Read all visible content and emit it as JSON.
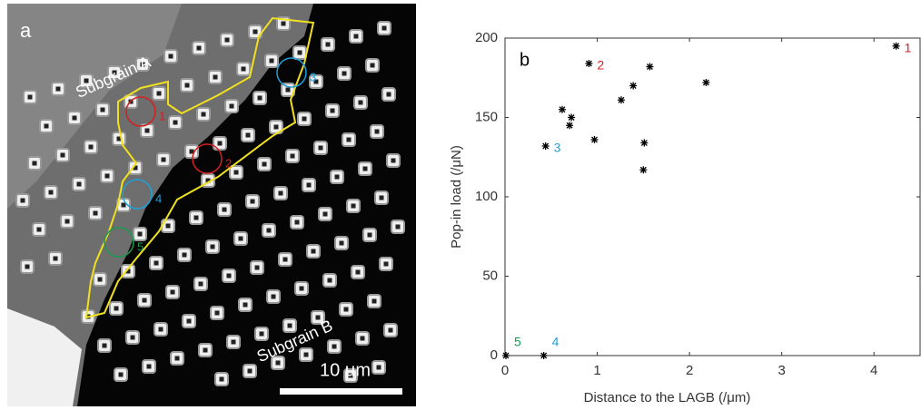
{
  "micrograph": {
    "panel_label": "a",
    "regions": [
      "Subgrain A",
      "Subgrain B"
    ],
    "scale_bar": "10 μm",
    "markers": [
      {
        "label": "1",
        "color": "#d42020"
      },
      {
        "label": "2",
        "color": "#d42020"
      },
      {
        "label": "3",
        "color": "#1fa0d8"
      },
      {
        "label": "4",
        "color": "#1fa0d8"
      },
      {
        "label": "5",
        "color": "#1a9a50"
      }
    ]
  },
  "chart_data": {
    "type": "scatter",
    "panel_label": "b",
    "x_label": "Distance to the LAGB (/μm)",
    "y_label": "Pop-in load (/μN)",
    "xlim": [
      0,
      4.5
    ],
    "ylim": [
      0,
      200
    ],
    "xticks": [
      0,
      1,
      2,
      3,
      4
    ],
    "yticks": [
      0,
      50,
      100,
      150,
      200
    ],
    "series": [
      {
        "color": "#000000",
        "x": [
          4.24,
          0.91,
          1.57,
          2.18,
          1.39,
          1.26,
          0.62,
          0.72,
          0.7,
          0.97,
          1.51,
          0.44,
          1.5,
          0.01,
          0.42
        ],
        "values": [
          195,
          184,
          182,
          172,
          170,
          161,
          155,
          150,
          145,
          136,
          134,
          132,
          117,
          0,
          0
        ],
        "point_labels": [
          "1",
          "2",
          null,
          null,
          null,
          null,
          null,
          null,
          null,
          null,
          null,
          "3",
          null,
          "5",
          "4"
        ],
        "point_label_colors": [
          "#d42020",
          "#d42020",
          null,
          null,
          null,
          null,
          null,
          null,
          null,
          null,
          null,
          "#1fa0d8",
          null,
          "#1a9a50",
          "#1fa0d8"
        ]
      }
    ]
  }
}
